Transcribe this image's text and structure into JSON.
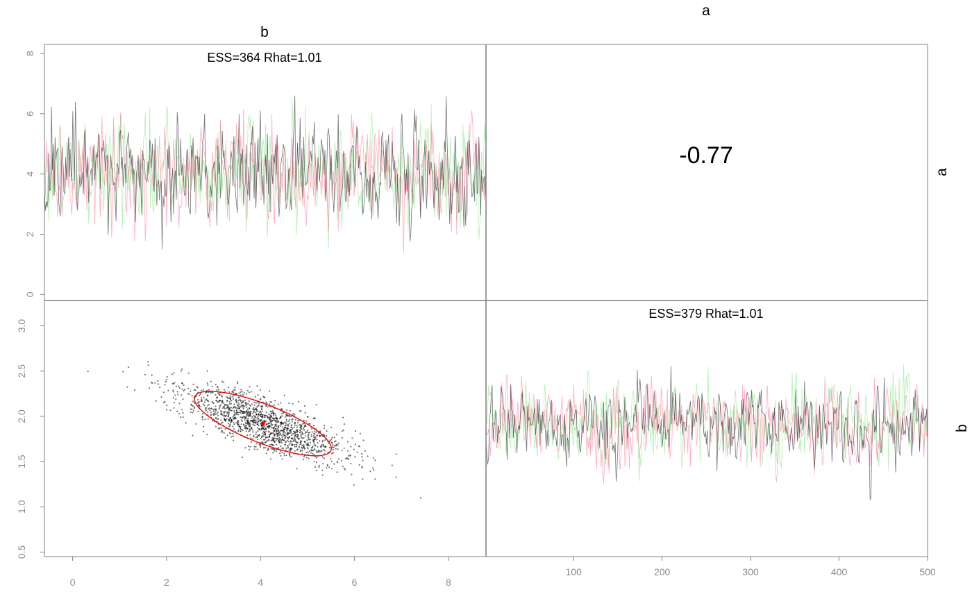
{
  "figure": {
    "col_labels": [
      "b",
      "a"
    ],
    "row_labels": [
      "a",
      "b"
    ],
    "correlation_text": "-0.77",
    "colors": {
      "chain1": "#000000",
      "chain2": "#ff6688",
      "chain3": "#55dd55",
      "ellipse": "#ee0000",
      "frame": "#7f7f7f",
      "tick": "#8a8a8a"
    }
  },
  "chart_data": [
    {
      "type": "line",
      "panel": "trace-a",
      "title": "ESS=364 Rhat=1.01",
      "x": [
        1,
        500
      ],
      "ylim": [
        -0.2,
        8.3
      ],
      "yticks": [
        0,
        2,
        4,
        6,
        8
      ],
      "series_stats": [
        {
          "chain": 1,
          "mean": 4.1,
          "sd": 0.85,
          "min": 1.5,
          "max": 6.6
        },
        {
          "chain": 2,
          "mean": 4.1,
          "sd": 0.9,
          "min": 1.4,
          "max": 7.3
        },
        {
          "chain": 3,
          "mean": 4.1,
          "sd": 0.9,
          "min": 0.7,
          "max": 6.9
        }
      ]
    },
    {
      "type": "scatter",
      "panel": "pairs-b-vs-a",
      "xlim": [
        -0.6,
        8.8
      ],
      "ylim": [
        0.45,
        3.28
      ],
      "xticks": [
        0,
        2,
        4,
        6,
        8
      ],
      "yticks": [
        0.5,
        1.0,
        1.5,
        2.0,
        2.5,
        3.0
      ],
      "ytick_labels": [
        "0.5",
        "1.0",
        "1.5",
        "2.0",
        "2.5",
        "3.0"
      ],
      "mean_point": {
        "x": 4.05,
        "y": 1.92
      },
      "correlation": -0.77,
      "x_mean": 4.05,
      "x_sd": 0.9,
      "y_mean": 1.92,
      "y_sd": 0.22,
      "n_points": 1500
    },
    {
      "type": "line",
      "panel": "trace-b",
      "title": "ESS=379 Rhat=1.01",
      "xlim": [
        1,
        500
      ],
      "xticks": [
        100,
        200,
        300,
        400,
        500
      ],
      "ylim": [
        0.45,
        3.28
      ],
      "series_stats": [
        {
          "chain": 1,
          "mean": 1.92,
          "sd": 0.2,
          "min": 0.75,
          "max": 2.7
        },
        {
          "chain": 2,
          "mean": 1.92,
          "sd": 0.22,
          "min": 1.15,
          "max": 2.45
        },
        {
          "chain": 3,
          "mean": 1.92,
          "sd": 0.22,
          "min": 1.25,
          "max": 2.95
        }
      ]
    }
  ]
}
